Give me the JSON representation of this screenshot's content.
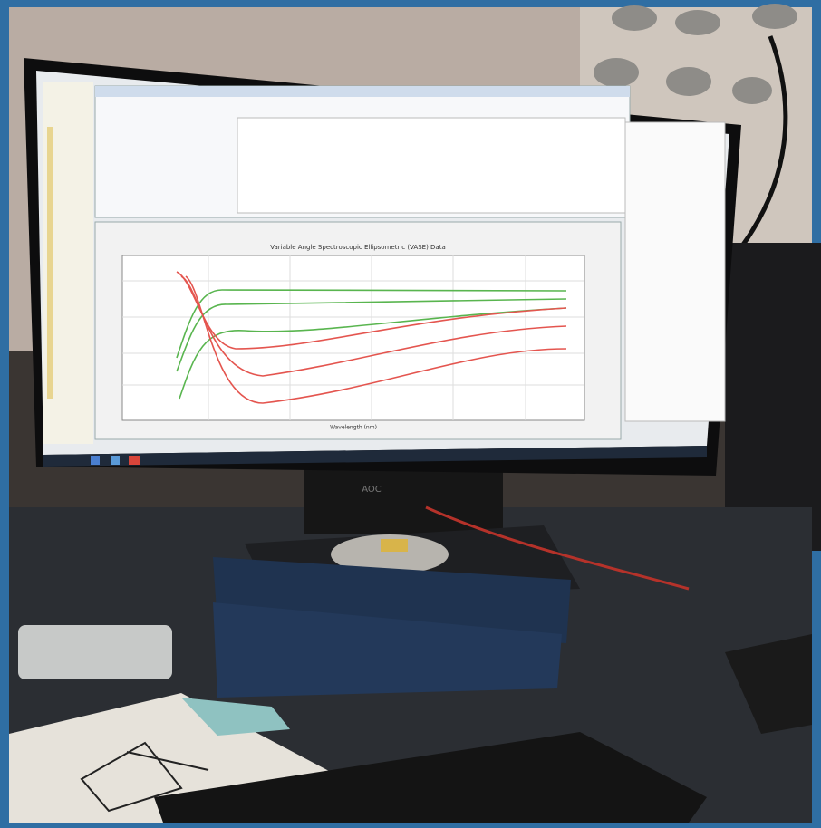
{
  "screen": {
    "chart": {
      "title": "Variable Angle Spectroscopic Ellipsometric (VASE) Data",
      "x_label": "Wavelength (nm)"
    }
  },
  "monitor": {
    "brand": "AOC"
  }
}
